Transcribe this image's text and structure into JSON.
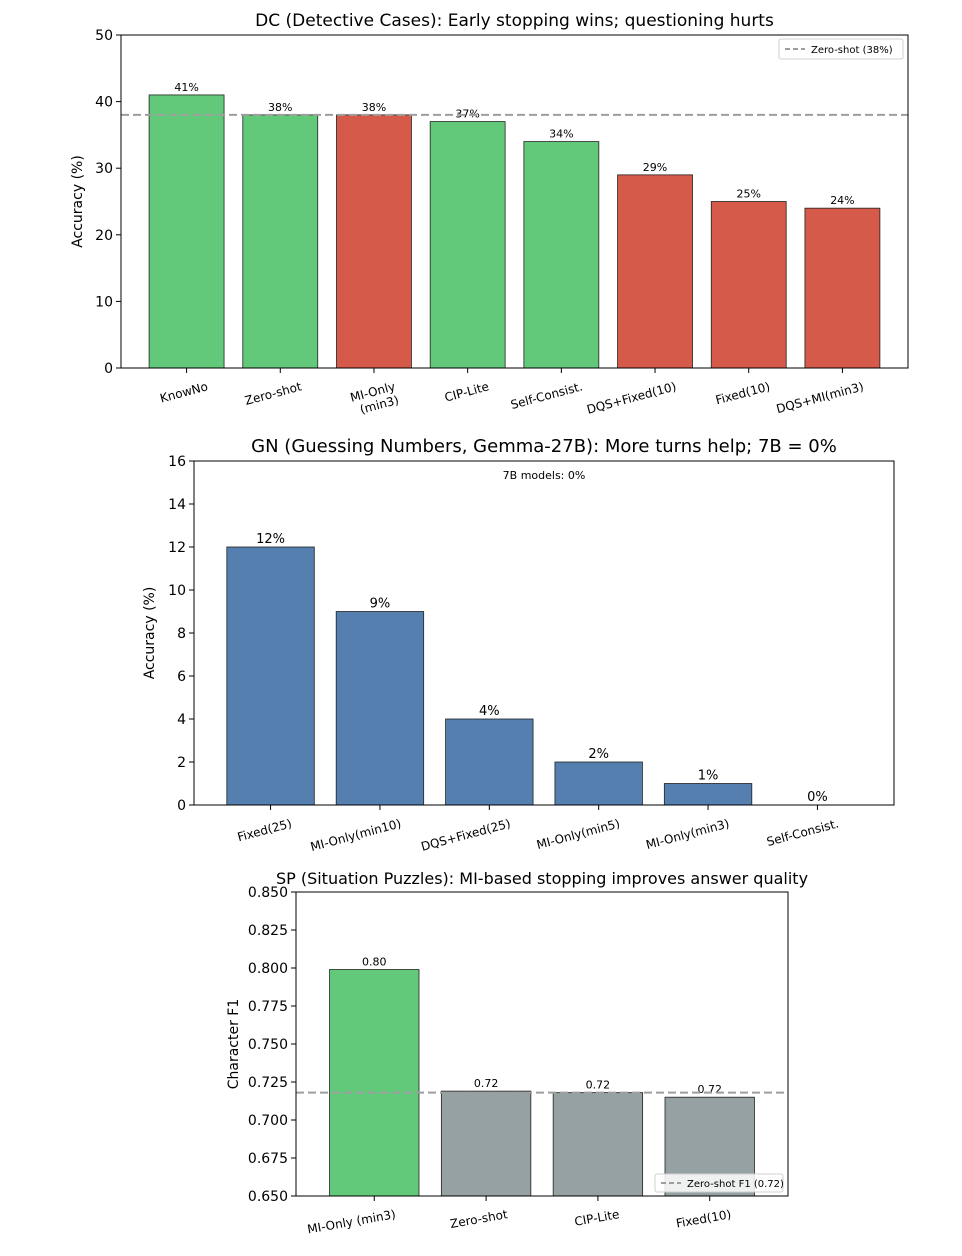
{
  "chart_data": [
    {
      "type": "bar",
      "title": "DC (Detective Cases): Early stopping wins; questioning hurts",
      "xlabel": "",
      "ylabel": "Accuracy (%)",
      "ylim": [
        0,
        50
      ],
      "yticks": [
        "0",
        "10",
        "20",
        "30",
        "40",
        "50"
      ],
      "ytick_values": [
        0,
        10,
        20,
        30,
        40,
        50
      ],
      "categories": [
        "KnowNo",
        "Zero-shot",
        "MI-Only\n(min3)",
        "CIP-Lite",
        "Self-Consist.",
        "DQS+Fixed(10)",
        "Fixed(10)",
        "DQS+MI(min3)"
      ],
      "values": [
        41,
        38,
        38,
        37,
        34,
        29,
        25,
        24
      ],
      "value_labels": [
        "41%",
        "38%",
        "38%",
        "37%",
        "34%",
        "29%",
        "25%",
        "24%"
      ],
      "bar_colors": [
        "#63c97a",
        "#63c97a",
        "#d65a49",
        "#63c97a",
        "#63c97a",
        "#d65a49",
        "#d65a49",
        "#d65a49"
      ],
      "reference_line": {
        "value": 38,
        "label": "Zero-shot (38%)",
        "color": "#9e9e9e",
        "style": "dashed"
      },
      "legend": {
        "position": "top-right",
        "entries": [
          "Zero-shot (38%)"
        ]
      },
      "grid": false
    },
    {
      "type": "bar",
      "title": "GN (Guessing Numbers, Gemma-27B): More turns help; 7B = 0%",
      "xlabel": "",
      "ylabel": "Accuracy (%)",
      "ylim": [
        0,
        16
      ],
      "yticks": [
        "0",
        "2",
        "4",
        "6",
        "8",
        "10",
        "12",
        "14",
        "16"
      ],
      "ytick_values": [
        0,
        2,
        4,
        6,
        8,
        10,
        12,
        14,
        16
      ],
      "categories": [
        "Fixed(25)",
        "MI-Only(min10)",
        "DQS+Fixed(25)",
        "MI-Only(min5)",
        "MI-Only(min3)",
        "Self-Consist."
      ],
      "values": [
        12,
        9,
        4,
        2,
        1,
        0
      ],
      "value_labels": [
        "12%",
        "9%",
        "4%",
        "2%",
        "1%",
        "0%"
      ],
      "bar_colors": [
        "#547faf",
        "#547faf",
        "#547faf",
        "#547faf",
        "#547faf",
        "#547faf"
      ],
      "annotation": "7B models: 0%",
      "grid": false
    },
    {
      "type": "bar",
      "title": "SP (Situation Puzzles): MI-based stopping improves answer quality",
      "xlabel": "",
      "ylabel": "Character F1",
      "ylim": [
        0.65,
        0.85
      ],
      "yticks": [
        "0.650",
        "0.675",
        "0.700",
        "0.725",
        "0.750",
        "0.775",
        "0.800",
        "0.825",
        "0.850"
      ],
      "ytick_values": [
        0.65,
        0.675,
        0.7,
        0.725,
        0.75,
        0.775,
        0.8,
        0.825,
        0.85
      ],
      "categories": [
        "MI-Only (min3)",
        "Zero-shot",
        "CIP-Lite",
        "Fixed(10)"
      ],
      "values": [
        0.799,
        0.719,
        0.718,
        0.715
      ],
      "value_labels": [
        "0.80",
        "0.72",
        "0.72",
        "0.72"
      ],
      "bar_colors": [
        "#63c97a",
        "#96a1a3",
        "#96a1a3",
        "#96a1a3"
      ],
      "reference_line": {
        "value": 0.718,
        "label": "Zero-shot F1 (0.72)",
        "color": "#9e9e9e",
        "style": "dashed"
      },
      "legend": {
        "position": "bottom-right",
        "entries": [
          "Zero-shot F1 (0.72)"
        ]
      },
      "grid": false
    }
  ]
}
